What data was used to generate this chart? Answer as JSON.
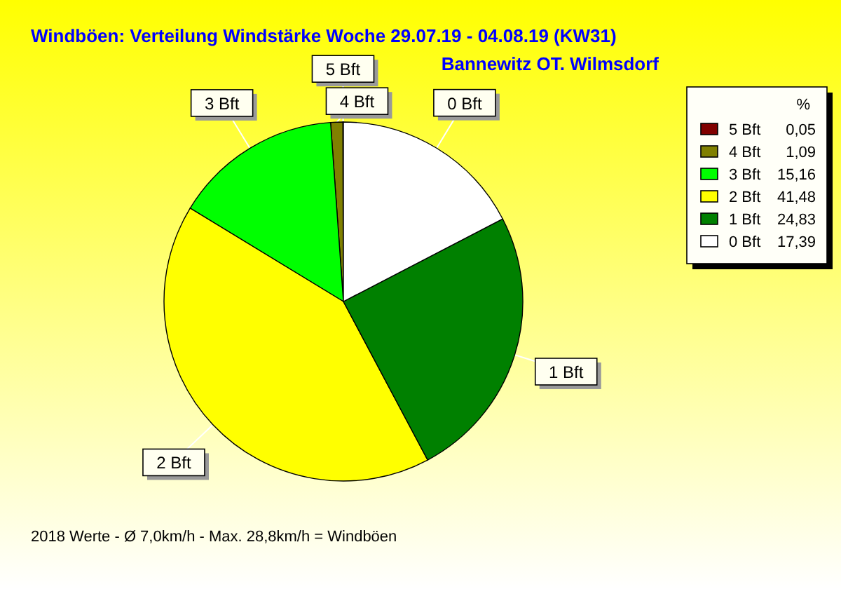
{
  "chart_data": {
    "type": "pie",
    "title": "Windböen: Verteilung Windstärke  Woche 29.07.19 - 04.08.19 (KW31)",
    "subtitle": "Bannewitz OT. Wilmsdorf",
    "legend_title": "%",
    "legend": "top right",
    "categories": [
      "5 Bft",
      "4 Bft",
      "3 Bft",
      "2 Bft",
      "1 Bft",
      "0 Bft"
    ],
    "values": [
      0.05,
      1.09,
      15.16,
      41.48,
      24.83,
      17.39
    ],
    "value_labels": [
      "0,05",
      "1,09",
      "15,16",
      "41,48",
      "24,83",
      "17,39"
    ],
    "colors": [
      "#800000",
      "#808000",
      "#00ff00",
      "#ffff00",
      "#008000",
      "#ffffff"
    ],
    "annotations": [
      "2018 Werte   -   Ø 7,0km/h  -  Max. 28,8km/h = Windböen"
    ]
  }
}
